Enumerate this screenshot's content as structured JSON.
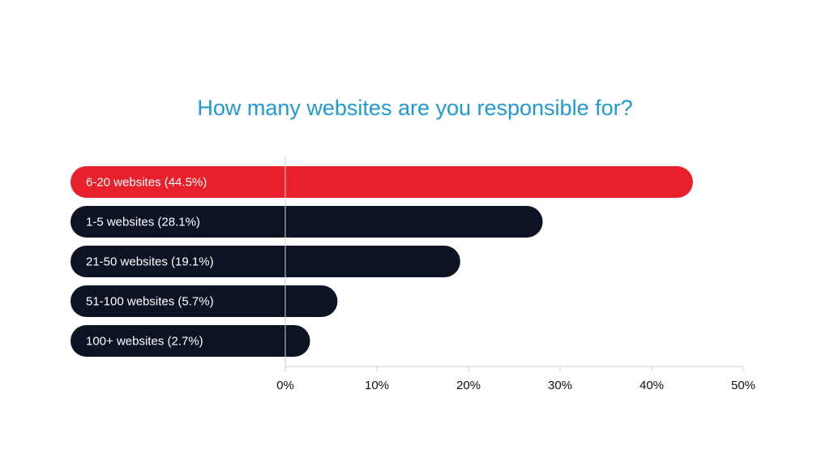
{
  "colors": {
    "title": "#1e9ad6",
    "highlight": "#e8202b",
    "bar": "#0c1424",
    "axis": "#cfcfcf",
    "text": "#111111"
  },
  "chart_data": {
    "type": "bar",
    "orientation": "horizontal",
    "title": "How many websites are you responsible for?",
    "categories": [
      "6-20 websites",
      "1-5 websites",
      "21-50 websites",
      "51-100 websites",
      "100+ websites"
    ],
    "bar_labels": [
      "6-20 websites (44.5%)",
      "1-5 websites (28.1%)",
      "21-50 websites (19.1%)",
      "51-100 websites (5.7%)",
      "100+ websites (2.7%)"
    ],
    "values": [
      44.5,
      28.1,
      19.1,
      5.7,
      2.7
    ],
    "highlight_index": 0,
    "xlim": [
      0,
      50
    ],
    "xticks": [
      0,
      10,
      20,
      30,
      40,
      50
    ],
    "xtick_labels": [
      "0%",
      "10%",
      "20%",
      "30%",
      "40%",
      "50%"
    ],
    "xlabel": "",
    "ylabel": "",
    "grid": false,
    "legend": "none"
  }
}
